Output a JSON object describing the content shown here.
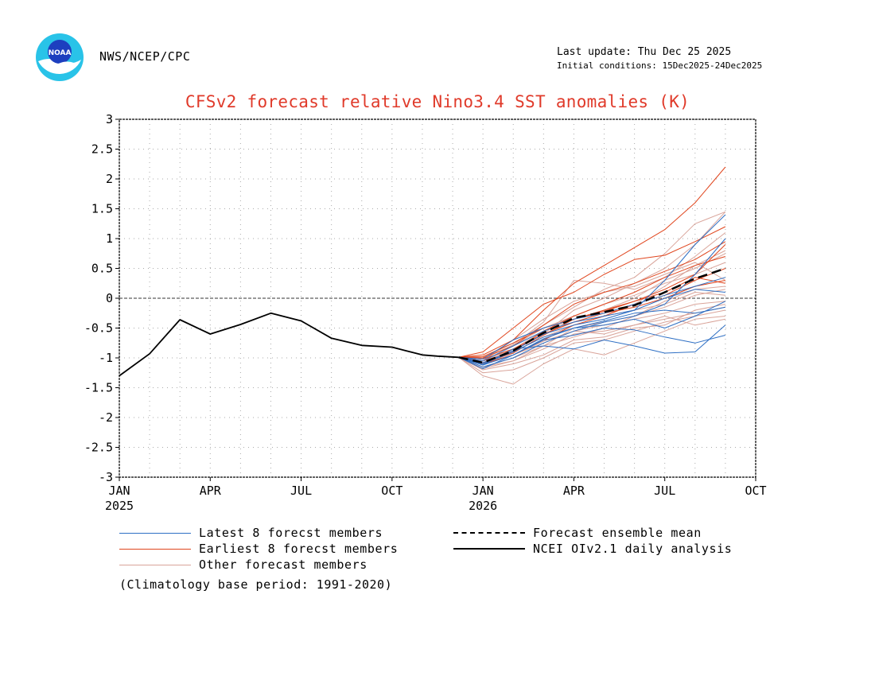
{
  "header": {
    "org": "NWS/NCEP/CPC",
    "last_update": "Last update: Thu Dec 25 2025",
    "initial_conditions": "Initial conditions: 15Dec2025-24Dec2025",
    "logo_text": "NOAA"
  },
  "colors": {
    "title": "#e03a2a",
    "latest": "#2e6fc4",
    "earliest": "#e0451d",
    "other": "#d9a49a",
    "mean": "#000000",
    "analysis": "#000000"
  },
  "legend": {
    "latest": "Latest 8 forecst members",
    "earliest": "Earliest 8 forecst members",
    "other": "Other forecast members",
    "mean": "Forecast ensemble mean",
    "analysis": "NCEI OIv2.1 daily analysis"
  },
  "note": "(Climatology base period: 1991-2020)",
  "chart_data": {
    "type": "line",
    "title": "CFSv2 forecast relative Nino3.4 SST anomalies (K)",
    "xlabel": "",
    "ylabel": "",
    "ylim": [
      -3,
      3
    ],
    "xlim": [
      0,
      21
    ],
    "x_unit": "months since Jan 2025",
    "yticks": [
      {
        "v": 3,
        "label": "3"
      },
      {
        "v": 2.5,
        "label": "2.5"
      },
      {
        "v": 2,
        "label": "2"
      },
      {
        "v": 1.5,
        "label": "1.5"
      },
      {
        "v": 1,
        "label": "1"
      },
      {
        "v": 0.5,
        "label": "0.5"
      },
      {
        "v": 0,
        "label": "0"
      },
      {
        "v": -0.5,
        "label": "-0.5"
      },
      {
        "v": -1,
        "label": "-1"
      },
      {
        "v": -1.5,
        "label": "-1.5"
      },
      {
        "v": -2,
        "label": "-2"
      },
      {
        "v": -2.5,
        "label": "-2.5"
      },
      {
        "v": -3,
        "label": "-3"
      }
    ],
    "xticks": [
      {
        "v": 0,
        "label": "JAN",
        "year": "2025"
      },
      {
        "v": 3,
        "label": "APR",
        "year": ""
      },
      {
        "v": 6,
        "label": "JUL",
        "year": ""
      },
      {
        "v": 9,
        "label": "OCT",
        "year": ""
      },
      {
        "v": 12,
        "label": "JAN",
        "year": "2026"
      },
      {
        "v": 15,
        "label": "APR",
        "year": ""
      },
      {
        "v": 18,
        "label": "JUL",
        "year": ""
      },
      {
        "v": 21,
        "label": "OCT",
        "year": ""
      }
    ],
    "grid": true,
    "zero_line": true,
    "analysis": {
      "name": "NCEI OIv2.1 daily analysis",
      "x": [
        0,
        1,
        2,
        3,
        4,
        5,
        6,
        7,
        8,
        9,
        10,
        10.5,
        11.2
      ],
      "y": [
        -1.3,
        -0.93,
        -0.36,
        -0.6,
        -0.44,
        -0.25,
        -0.38,
        -0.67,
        -0.79,
        -0.82,
        -0.95,
        -0.97,
        -0.99
      ]
    },
    "forecast_x": [
      11.2,
      12,
      13,
      14,
      15,
      16,
      17,
      18,
      19,
      20
    ],
    "mean": {
      "name": "Forecast ensemble mean",
      "y": [
        -0.99,
        -1.08,
        -0.88,
        -0.58,
        -0.33,
        -0.23,
        -0.12,
        0.1,
        0.33,
        0.5
      ]
    },
    "latest": {
      "name": "Latest 8 forecst members",
      "members": [
        [
          -0.99,
          -1.18,
          -0.95,
          -0.7,
          -0.62,
          -0.5,
          -0.53,
          -0.65,
          -0.75,
          -0.62
        ],
        [
          -0.99,
          -1.12,
          -0.85,
          -0.8,
          -0.85,
          -0.7,
          -0.8,
          -0.92,
          -0.9,
          -0.45
        ],
        [
          -0.99,
          -1.05,
          -0.8,
          -0.55,
          -0.4,
          -0.3,
          -0.2,
          0.3,
          0.9,
          1.4
        ],
        [
          -0.99,
          -1.1,
          -0.9,
          -0.65,
          -0.5,
          -0.45,
          -0.35,
          -0.5,
          -0.3,
          -0.05
        ],
        [
          -0.99,
          -1.15,
          -1.0,
          -0.75,
          -0.55,
          -0.4,
          -0.3,
          -0.1,
          0.4,
          1.0
        ],
        [
          -0.99,
          -1.02,
          -0.7,
          -0.5,
          -0.35,
          -0.25,
          -0.1,
          0.05,
          0.2,
          0.35
        ],
        [
          -0.99,
          -1.08,
          -0.88,
          -0.6,
          -0.45,
          -0.35,
          -0.2,
          0.0,
          0.15,
          0.1
        ],
        [
          -0.99,
          -1.12,
          -0.95,
          -0.68,
          -0.5,
          -0.38,
          -0.25,
          -0.2,
          -0.25,
          -0.15
        ]
      ]
    },
    "earliest": {
      "name": "Earliest 8 forecst members",
      "members": [
        [
          -0.99,
          -0.95,
          -0.7,
          -0.2,
          0.25,
          0.55,
          0.85,
          1.15,
          1.6,
          2.2
        ],
        [
          -0.99,
          -0.9,
          -0.5,
          -0.1,
          0.1,
          0.4,
          0.65,
          0.72,
          0.95,
          1.2
        ],
        [
          -0.99,
          -1.0,
          -0.8,
          -0.45,
          -0.1,
          0.1,
          0.25,
          0.45,
          0.65,
          0.95
        ],
        [
          -0.99,
          -1.05,
          -0.9,
          -0.55,
          -0.3,
          -0.1,
          0.1,
          0.35,
          0.55,
          0.7
        ],
        [
          -0.99,
          -1.1,
          -0.95,
          -0.7,
          -0.45,
          -0.3,
          -0.1,
          0.05,
          0.3,
          0.5
        ],
        [
          -0.99,
          -0.98,
          -0.75,
          -0.5,
          -0.35,
          -0.2,
          -0.05,
          0.15,
          0.4,
          0.9
        ],
        [
          -0.99,
          -1.02,
          -0.85,
          -0.6,
          -0.4,
          -0.25,
          -0.15,
          0.0,
          0.2,
          0.3
        ],
        [
          -0.99,
          -1.08,
          -0.92,
          -0.62,
          -0.35,
          -0.22,
          -0.05,
          0.1,
          0.35,
          0.25
        ]
      ]
    },
    "other": {
      "name": "Other forecast members",
      "members": [
        [
          -0.99,
          -1.3,
          -1.44,
          -1.1,
          -0.85,
          -0.95,
          -0.75,
          -0.55,
          -0.35,
          -0.3
        ],
        [
          -0.99,
          -1.2,
          -1.1,
          -0.95,
          -0.7,
          -0.65,
          -0.5,
          -0.45,
          -0.2,
          -0.1
        ],
        [
          -0.99,
          -1.15,
          -1.0,
          -0.8,
          -0.5,
          -0.4,
          -0.3,
          -0.15,
          0.05,
          0.15
        ],
        [
          -0.99,
          -1.05,
          -0.85,
          -0.6,
          -0.2,
          0.0,
          0.25,
          0.5,
          0.9,
          1.45
        ],
        [
          -0.99,
          -1.0,
          -0.75,
          -0.45,
          -0.15,
          0.15,
          0.35,
          0.75,
          1.25,
          1.45
        ],
        [
          -0.99,
          -1.12,
          -0.9,
          -0.65,
          -0.45,
          -0.3,
          -0.1,
          0.2,
          0.55,
          0.8
        ],
        [
          -0.99,
          -1.08,
          -0.95,
          -0.72,
          -0.55,
          -0.45,
          -0.35,
          -0.25,
          -0.1,
          -0.05
        ],
        [
          -0.99,
          -1.18,
          -1.05,
          -0.85,
          -0.6,
          -0.55,
          -0.45,
          -0.35,
          -0.25,
          -0.15
        ],
        [
          -0.99,
          -1.0,
          -0.8,
          -0.5,
          -0.3,
          -0.1,
          0.05,
          0.25,
          0.4,
          0.6
        ],
        [
          -0.99,
          -1.1,
          -0.85,
          -0.55,
          -0.35,
          -0.2,
          0.0,
          0.3,
          0.5,
          0.75
        ],
        [
          -0.99,
          -1.25,
          -1.2,
          -1.0,
          -0.75,
          -0.7,
          -0.55,
          -0.4,
          -0.3,
          -0.2
        ],
        [
          -0.99,
          -1.05,
          -0.7,
          -0.35,
          -0.05,
          0.1,
          0.2,
          0.4,
          0.6,
          0.3
        ],
        [
          -0.99,
          -1.15,
          -1.05,
          -0.8,
          -0.65,
          -0.5,
          -0.3,
          -0.05,
          0.15,
          0.2
        ],
        [
          -0.99,
          -1.02,
          -0.78,
          -0.4,
          0.3,
          0.25,
          0.15,
          0.35,
          0.7,
          1.1
        ],
        [
          -0.99,
          -1.1,
          -0.95,
          -0.75,
          -0.55,
          -0.6,
          -0.45,
          -0.3,
          -0.45,
          -0.35
        ],
        [
          -0.99,
          -1.08,
          -0.88,
          -0.6,
          -0.4,
          -0.3,
          -0.2,
          -0.1,
          0.1,
          0.05
        ]
      ]
    }
  }
}
